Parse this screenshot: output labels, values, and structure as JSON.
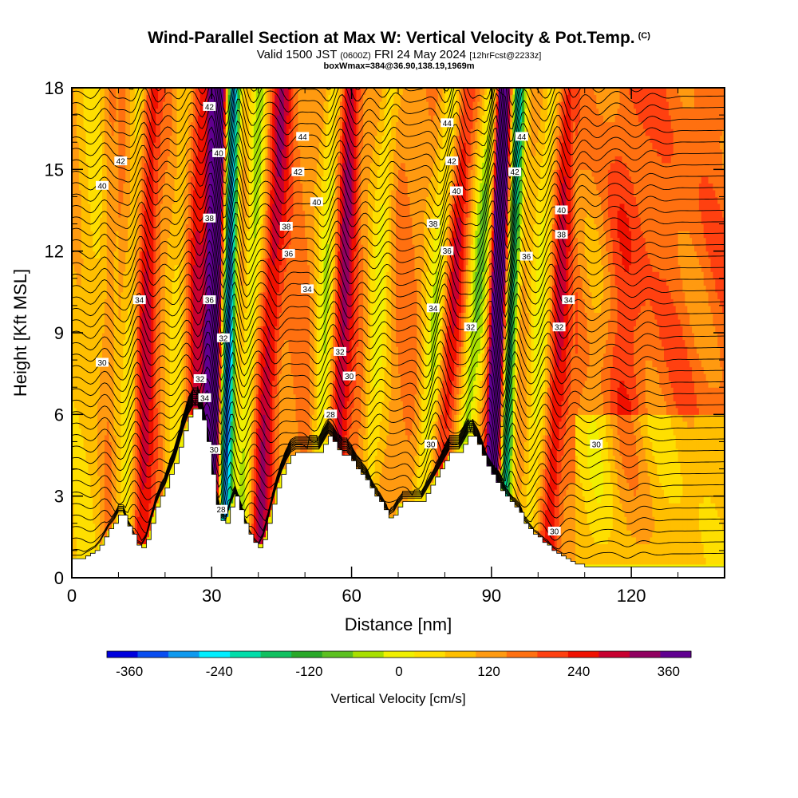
{
  "header": {
    "title": "Wind-Parallel Section at Max W: Vertical Velocity & Pot.Temp.",
    "copyright": "(C)",
    "subtitle_a": "Valid 1500 JST",
    "subtitle_b": "(0600Z)",
    "subtitle_c": "FRI 24 May 2024",
    "subtitle_d": "[12hrFcst@2233z]",
    "box_info": "boxWmax=384@36.90,138.19,1969m"
  },
  "chart_data": {
    "type": "heatmap",
    "xlabel": "Distance [nm]",
    "ylabel": "Height [Kft MSL]",
    "xlim": [
      0,
      140
    ],
    "ylim": [
      0,
      18
    ],
    "x_ticks": [
      0,
      30,
      60,
      90,
      120
    ],
    "x_tick_labels": [
      "0",
      "30",
      "60",
      "90",
      "120"
    ],
    "y_ticks": [
      0,
      3,
      6,
      9,
      12,
      15,
      18
    ],
    "y_tick_labels": [
      "0",
      "3",
      "6",
      "9",
      "12",
      "15",
      "18"
    ],
    "colorbar": {
      "label": "Vertical Velocity [cm/s]",
      "min": -390,
      "max": 390,
      "step": 30,
      "tick_values": [
        -360,
        -240,
        -120,
        0,
        120,
        240,
        360
      ],
      "tick_labels": [
        "-360",
        "-240",
        "-120",
        "0",
        "120",
        "240",
        "360"
      ],
      "colors": [
        "#0000dd",
        "#0a4ef0",
        "#0f99ee",
        "#00eeff",
        "#00ddaa",
        "#10c060",
        "#28a828",
        "#5cc020",
        "#a8e000",
        "#f0f000",
        "#fedf00",
        "#ffbf00",
        "#ff9a10",
        "#ff7010",
        "#ff4010",
        "#f01000",
        "#c80030",
        "#900060",
        "#600090"
      ]
    },
    "theta_labels": [
      {
        "value": "42",
        "x": 10.5,
        "y": 15.3
      },
      {
        "value": "40",
        "x": 6.5,
        "y": 14.4
      },
      {
        "value": "30",
        "x": 6.5,
        "y": 7.9
      },
      {
        "value": "34",
        "x": 14.5,
        "y": 10.2
      },
      {
        "value": "42",
        "x": 29.5,
        "y": 17.3
      },
      {
        "value": "40",
        "x": 31.5,
        "y": 15.6
      },
      {
        "value": "38",
        "x": 29.5,
        "y": 13.2
      },
      {
        "value": "36",
        "x": 29.5,
        "y": 10.2
      },
      {
        "value": "32",
        "x": 32.5,
        "y": 8.8
      },
      {
        "value": "32",
        "x": 27.5,
        "y": 7.3
      },
      {
        "value": "34",
        "x": 28.5,
        "y": 6.6
      },
      {
        "value": "30",
        "x": 30.5,
        "y": 4.7
      },
      {
        "value": "28",
        "x": 32.0,
        "y": 2.5
      },
      {
        "value": "44",
        "x": 49.5,
        "y": 16.2
      },
      {
        "value": "42",
        "x": 48.5,
        "y": 14.9
      },
      {
        "value": "40",
        "x": 52.5,
        "y": 13.8
      },
      {
        "value": "38",
        "x": 46.0,
        "y": 12.9
      },
      {
        "value": "36",
        "x": 46.5,
        "y": 11.9
      },
      {
        "value": "34",
        "x": 50.5,
        "y": 10.6
      },
      {
        "value": "32",
        "x": 57.5,
        "y": 8.3
      },
      {
        "value": "30",
        "x": 59.5,
        "y": 7.4
      },
      {
        "value": "28",
        "x": 55.5,
        "y": 6.0
      },
      {
        "value": "44",
        "x": 80.5,
        "y": 16.7
      },
      {
        "value": "42",
        "x": 81.5,
        "y": 15.3
      },
      {
        "value": "40",
        "x": 82.5,
        "y": 14.2
      },
      {
        "value": "38",
        "x": 77.5,
        "y": 13.0
      },
      {
        "value": "36",
        "x": 80.5,
        "y": 12.0
      },
      {
        "value": "34",
        "x": 77.5,
        "y": 9.9
      },
      {
        "value": "32",
        "x": 85.5,
        "y": 9.2
      },
      {
        "value": "30",
        "x": 77.0,
        "y": 4.9
      },
      {
        "value": "44",
        "x": 96.5,
        "y": 16.2
      },
      {
        "value": "42",
        "x": 95.0,
        "y": 14.9
      },
      {
        "value": "40",
        "x": 105.0,
        "y": 13.5
      },
      {
        "value": "38",
        "x": 105.0,
        "y": 12.6
      },
      {
        "value": "36",
        "x": 97.5,
        "y": 11.8
      },
      {
        "value": "34",
        "x": 106.5,
        "y": 10.2
      },
      {
        "value": "32",
        "x": 104.5,
        "y": 9.2
      },
      {
        "value": "30",
        "x": 112.5,
        "y": 4.9
      },
      {
        "value": "30",
        "x": 103.5,
        "y": 1.7
      }
    ]
  }
}
